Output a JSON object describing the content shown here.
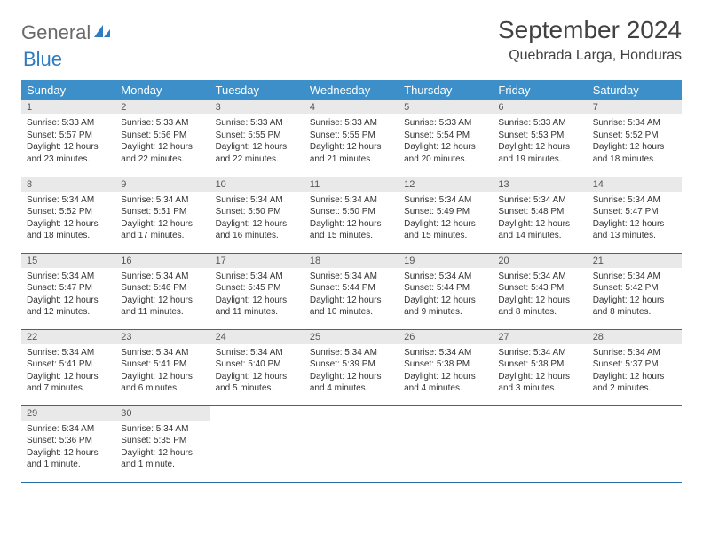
{
  "logo": {
    "word1": "General",
    "word2": "Blue",
    "color_gray": "#6a6a6a",
    "color_blue": "#2f7bbf"
  },
  "title": {
    "month": "September 2024",
    "location": "Quebrada Larga, Honduras"
  },
  "colors": {
    "header_bg": "#3c8fc9",
    "header_text": "#ffffff",
    "band_bg": "#e9e9e9",
    "row_border": "#2a6ba0",
    "body_text": "#333333"
  },
  "weekdays": [
    "Sunday",
    "Monday",
    "Tuesday",
    "Wednesday",
    "Thursday",
    "Friday",
    "Saturday"
  ],
  "labels": {
    "sunrise": "Sunrise:",
    "sunset": "Sunset:",
    "daylight": "Daylight:"
  },
  "days": [
    {
      "n": 1,
      "sr": "5:33 AM",
      "ss": "5:57 PM",
      "dl": "12 hours and 23 minutes."
    },
    {
      "n": 2,
      "sr": "5:33 AM",
      "ss": "5:56 PM",
      "dl": "12 hours and 22 minutes."
    },
    {
      "n": 3,
      "sr": "5:33 AM",
      "ss": "5:55 PM",
      "dl": "12 hours and 22 minutes."
    },
    {
      "n": 4,
      "sr": "5:33 AM",
      "ss": "5:55 PM",
      "dl": "12 hours and 21 minutes."
    },
    {
      "n": 5,
      "sr": "5:33 AM",
      "ss": "5:54 PM",
      "dl": "12 hours and 20 minutes."
    },
    {
      "n": 6,
      "sr": "5:33 AM",
      "ss": "5:53 PM",
      "dl": "12 hours and 19 minutes."
    },
    {
      "n": 7,
      "sr": "5:34 AM",
      "ss": "5:52 PM",
      "dl": "12 hours and 18 minutes."
    },
    {
      "n": 8,
      "sr": "5:34 AM",
      "ss": "5:52 PM",
      "dl": "12 hours and 18 minutes."
    },
    {
      "n": 9,
      "sr": "5:34 AM",
      "ss": "5:51 PM",
      "dl": "12 hours and 17 minutes."
    },
    {
      "n": 10,
      "sr": "5:34 AM",
      "ss": "5:50 PM",
      "dl": "12 hours and 16 minutes."
    },
    {
      "n": 11,
      "sr": "5:34 AM",
      "ss": "5:50 PM",
      "dl": "12 hours and 15 minutes."
    },
    {
      "n": 12,
      "sr": "5:34 AM",
      "ss": "5:49 PM",
      "dl": "12 hours and 15 minutes."
    },
    {
      "n": 13,
      "sr": "5:34 AM",
      "ss": "5:48 PM",
      "dl": "12 hours and 14 minutes."
    },
    {
      "n": 14,
      "sr": "5:34 AM",
      "ss": "5:47 PM",
      "dl": "12 hours and 13 minutes."
    },
    {
      "n": 15,
      "sr": "5:34 AM",
      "ss": "5:47 PM",
      "dl": "12 hours and 12 minutes."
    },
    {
      "n": 16,
      "sr": "5:34 AM",
      "ss": "5:46 PM",
      "dl": "12 hours and 11 minutes."
    },
    {
      "n": 17,
      "sr": "5:34 AM",
      "ss": "5:45 PM",
      "dl": "12 hours and 11 minutes."
    },
    {
      "n": 18,
      "sr": "5:34 AM",
      "ss": "5:44 PM",
      "dl": "12 hours and 10 minutes."
    },
    {
      "n": 19,
      "sr": "5:34 AM",
      "ss": "5:44 PM",
      "dl": "12 hours and 9 minutes."
    },
    {
      "n": 20,
      "sr": "5:34 AM",
      "ss": "5:43 PM",
      "dl": "12 hours and 8 minutes."
    },
    {
      "n": 21,
      "sr": "5:34 AM",
      "ss": "5:42 PM",
      "dl": "12 hours and 8 minutes."
    },
    {
      "n": 22,
      "sr": "5:34 AM",
      "ss": "5:41 PM",
      "dl": "12 hours and 7 minutes."
    },
    {
      "n": 23,
      "sr": "5:34 AM",
      "ss": "5:41 PM",
      "dl": "12 hours and 6 minutes."
    },
    {
      "n": 24,
      "sr": "5:34 AM",
      "ss": "5:40 PM",
      "dl": "12 hours and 5 minutes."
    },
    {
      "n": 25,
      "sr": "5:34 AM",
      "ss": "5:39 PM",
      "dl": "12 hours and 4 minutes."
    },
    {
      "n": 26,
      "sr": "5:34 AM",
      "ss": "5:38 PM",
      "dl": "12 hours and 4 minutes."
    },
    {
      "n": 27,
      "sr": "5:34 AM",
      "ss": "5:38 PM",
      "dl": "12 hours and 3 minutes."
    },
    {
      "n": 28,
      "sr": "5:34 AM",
      "ss": "5:37 PM",
      "dl": "12 hours and 2 minutes."
    },
    {
      "n": 29,
      "sr": "5:34 AM",
      "ss": "5:36 PM",
      "dl": "12 hours and 1 minute."
    },
    {
      "n": 30,
      "sr": "5:34 AM",
      "ss": "5:35 PM",
      "dl": "12 hours and 1 minute."
    }
  ],
  "grid": {
    "start_weekday": 0,
    "total_cells": 35
  }
}
